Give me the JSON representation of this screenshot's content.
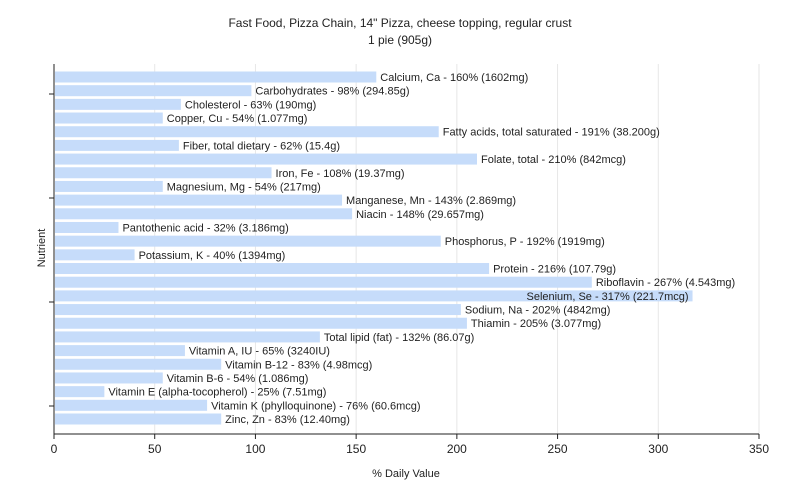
{
  "chart_data": {
    "type": "bar",
    "orientation": "horizontal",
    "title": "Fast Food, Pizza Chain, 14\" Pizza, cheese topping, regular crust",
    "subtitle": "1 pie (905g)",
    "xlabel": "% Daily Value",
    "ylabel": "Nutrient",
    "xlim": [
      0,
      350
    ],
    "xticks": [
      0,
      50,
      100,
      150,
      200,
      250,
      300,
      350
    ],
    "grid": "vertical",
    "bar_color": "#c6dcfa",
    "categories": [
      "Calcium, Ca",
      "Carbohydrates",
      "Cholesterol",
      "Copper, Cu",
      "Fatty acids, total saturated",
      "Fiber, total dietary",
      "Folate, total",
      "Iron, Fe",
      "Magnesium, Mg",
      "Manganese, Mn",
      "Niacin",
      "Pantothenic acid",
      "Phosphorus, P",
      "Potassium, K",
      "Protein",
      "Riboflavin",
      "Selenium, Se",
      "Sodium, Na",
      "Thiamin",
      "Total lipid (fat)",
      "Vitamin A, IU",
      "Vitamin B-12",
      "Vitamin B-6",
      "Vitamin E (alpha-tocopherol)",
      "Vitamin K (phylloquinone)",
      "Zinc, Zn"
    ],
    "values": [
      160,
      98,
      63,
      54,
      191,
      62,
      210,
      108,
      54,
      143,
      148,
      32,
      192,
      40,
      216,
      267,
      317,
      202,
      205,
      132,
      65,
      83,
      54,
      25,
      76,
      83
    ],
    "labels": [
      "Calcium, Ca - 160% (1602mg)",
      "Carbohydrates - 98% (294.85g)",
      "Cholesterol - 63% (190mg)",
      "Copper, Cu - 54% (1.077mg)",
      "Fatty acids, total saturated - 191% (38.200g)",
      "Fiber, total dietary - 62% (15.4g)",
      "Folate, total - 210% (842mcg)",
      "Iron, Fe - 108% (19.37mg)",
      "Magnesium, Mg - 54% (217mg)",
      "Manganese, Mn - 143% (2.869mg)",
      "Niacin - 148% (29.657mg)",
      "Pantothenic acid - 32% (3.186mg)",
      "Phosphorus, P - 192% (1919mg)",
      "Potassium, K - 40% (1394mg)",
      "Protein - 216% (107.79g)",
      "Riboflavin - 267% (4.543mg)",
      "Selenium, Se - 317% (221.7mcg)",
      "Sodium, Na - 202% (4842mg)",
      "Thiamin - 205% (3.077mg)",
      "Total lipid (fat) - 132% (86.07g)",
      "Vitamin A, IU - 65% (3240IU)",
      "Vitamin B-12 - 83% (4.98mcg)",
      "Vitamin B-6 - 54% (1.086mg)",
      "Vitamin E (alpha-tocopherol) - 25% (7.51mg)",
      "Vitamin K (phylloquinone) - 76% (60.6mcg)",
      "Zinc, Zn - 83% (12.40mg)"
    ]
  }
}
